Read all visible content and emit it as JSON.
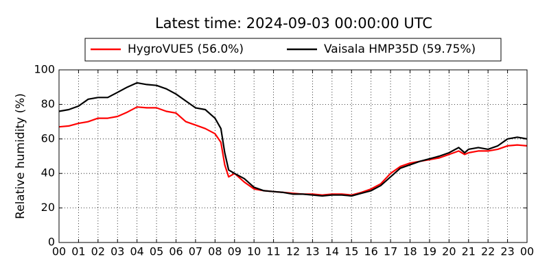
{
  "chart_data": {
    "type": "line",
    "title": "Latest time: 2024-09-03 00:00:00 UTC",
    "y_label": "Relative humidity (%)",
    "x": [
      0,
      0.5,
      1,
      1.5,
      2,
      2.5,
      3,
      3.5,
      4,
      4.5,
      5,
      5.5,
      6,
      6.5,
      7,
      7.5,
      8,
      8.3,
      8.5,
      8.7,
      9,
      9.5,
      10,
      10.5,
      11,
      11.5,
      12,
      12.5,
      13,
      13.5,
      14,
      14.5,
      15,
      15.5,
      16,
      16.5,
      17,
      17.5,
      18,
      18.5,
      19,
      19.5,
      20,
      20.5,
      20.8,
      21,
      21.5,
      22,
      22.5,
      23,
      23.5,
      24
    ],
    "series": [
      {
        "name": "HygroVUE5 (56.0%)",
        "color": "#ff0000",
        "values": [
          67,
          67.5,
          69,
          70,
          72,
          72,
          73,
          75.5,
          78.5,
          78,
          78,
          76,
          75,
          70,
          68,
          66,
          63,
          58,
          45,
          38,
          40,
          35,
          31,
          30,
          29.5,
          29,
          28.5,
          28,
          28,
          27.5,
          28,
          28,
          27.5,
          29,
          31,
          34,
          40,
          44,
          46,
          47,
          48,
          49,
          51,
          53,
          51,
          52,
          53,
          53,
          54,
          56,
          56.5,
          56
        ]
      },
      {
        "name": "Vaisala HMP35D (59.75%)",
        "color": "#000000",
        "values": [
          76,
          77,
          79,
          83,
          84,
          84,
          87,
          90,
          92.5,
          91.5,
          91,
          89,
          86,
          82,
          78,
          77,
          72,
          66,
          52,
          42,
          40,
          37,
          32,
          30,
          29.5,
          29,
          28,
          28,
          27.5,
          27,
          27.5,
          27.5,
          27,
          28.5,
          30,
          33,
          38,
          43,
          45,
          47,
          48.5,
          50,
          52,
          55,
          52,
          54,
          55,
          54,
          56,
          60,
          61,
          60
        ]
      }
    ],
    "xlim": [
      0,
      24
    ],
    "xticks": [
      {
        "value": 0,
        "label": "00"
      },
      {
        "value": 1,
        "label": "01"
      },
      {
        "value": 2,
        "label": "02"
      },
      {
        "value": 3,
        "label": "03"
      },
      {
        "value": 4,
        "label": "04"
      },
      {
        "value": 5,
        "label": "05"
      },
      {
        "value": 6,
        "label": "06"
      },
      {
        "value": 7,
        "label": "07"
      },
      {
        "value": 8,
        "label": "08"
      },
      {
        "value": 9,
        "label": "09"
      },
      {
        "value": 10,
        "label": "10"
      },
      {
        "value": 11,
        "label": "11"
      },
      {
        "value": 12,
        "label": "12"
      },
      {
        "value": 13,
        "label": "13"
      },
      {
        "value": 14,
        "label": "14"
      },
      {
        "value": 15,
        "label": "15"
      },
      {
        "value": 16,
        "label": "16"
      },
      {
        "value": 17,
        "label": "17"
      },
      {
        "value": 18,
        "label": "18"
      },
      {
        "value": 19,
        "label": "19"
      },
      {
        "value": 20,
        "label": "20"
      },
      {
        "value": 21,
        "label": "21"
      },
      {
        "value": 22,
        "label": "22"
      },
      {
        "value": 23,
        "label": "23"
      },
      {
        "value": 24,
        "label": "00"
      }
    ],
    "ylim": [
      0,
      100
    ],
    "yticks": [
      0,
      20,
      40,
      60,
      80,
      100
    ],
    "grid": true,
    "legend": "top"
  }
}
